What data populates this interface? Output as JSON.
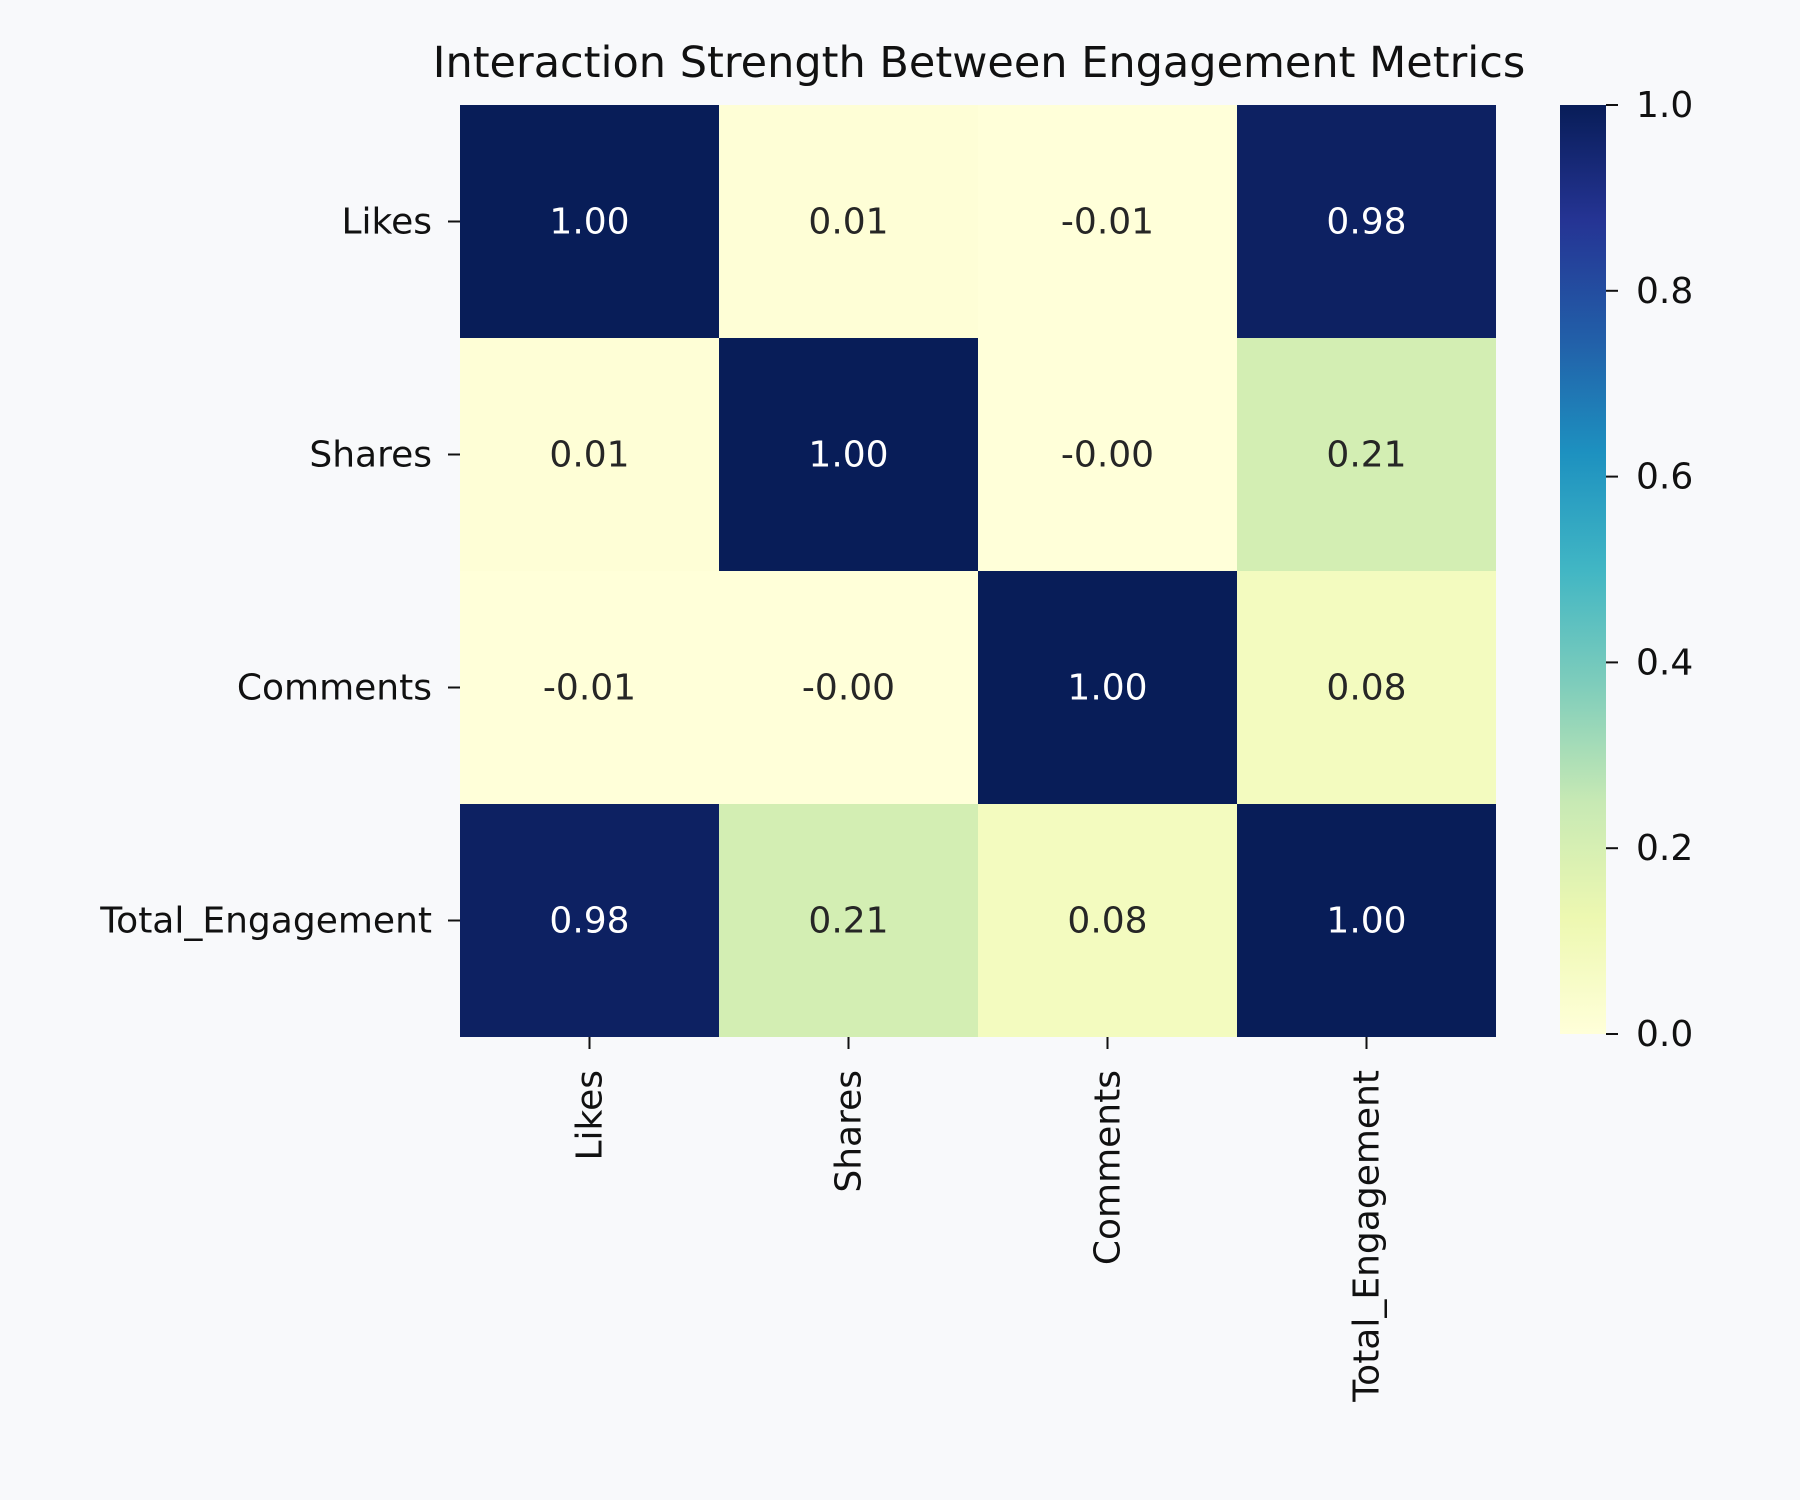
{
  "chart_data": {
    "type": "heatmap",
    "title": "Interaction Strength Between Engagement Metrics",
    "x_categories": [
      "Likes",
      "Shares",
      "Comments",
      "Total_Engagement"
    ],
    "y_categories": [
      "Likes",
      "Shares",
      "Comments",
      "Total_Engagement"
    ],
    "values": [
      [
        1.0,
        0.01,
        -0.01,
        0.98
      ],
      [
        0.01,
        1.0,
        0.0,
        0.21
      ],
      [
        -0.01,
        0.0,
        1.0,
        0.08
      ],
      [
        0.98,
        0.21,
        0.08,
        1.0
      ]
    ],
    "cell_labels": [
      [
        "1.00",
        "0.01",
        "-0.01",
        "0.98"
      ],
      [
        "0.01",
        "1.00",
        "-0.00",
        "0.21"
      ],
      [
        "-0.01",
        "-0.00",
        "1.00",
        "0.08"
      ],
      [
        "0.98",
        "0.21",
        "0.08",
        "1.00"
      ]
    ],
    "colorbar": {
      "min": 0.0,
      "max": 1.0,
      "ticks": [
        "0.0",
        "0.2",
        "0.4",
        "0.6",
        "0.8",
        "1.0"
      ],
      "placement": "right"
    },
    "colormap": "YlGnBu",
    "grid": false
  }
}
